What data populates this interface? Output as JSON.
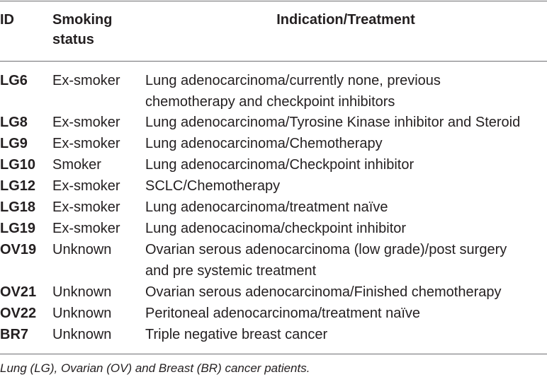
{
  "headers": {
    "id": "ID",
    "smoking_line1": "Smoking",
    "smoking_line2": "status",
    "indication": "Indication/Treatment"
  },
  "rows": [
    {
      "id": "LG6",
      "smoking": "Ex-smoker",
      "ind1": "Lung adenocarcinoma/currently none, previous",
      "ind2": "chemotherapy and checkpoint inhibitors"
    },
    {
      "id": "LG8",
      "smoking": "Ex-smoker",
      "ind1": "Lung adenocarcinoma/Tyrosine Kinase inhibitor and Steroid",
      "ind2": ""
    },
    {
      "id": "LG9",
      "smoking": "Ex-smoker",
      "ind1": "Lung adenocarcinoma/Chemotherapy",
      "ind2": ""
    },
    {
      "id": "LG10",
      "smoking": "Smoker",
      "ind1": "Lung adenocarcinoma/Checkpoint inhibitor",
      "ind2": ""
    },
    {
      "id": "LG12",
      "smoking": "Ex-smoker",
      "ind1": "SCLC/Chemotherapy",
      "ind2": ""
    },
    {
      "id": "LG18",
      "smoking": "Ex-smoker",
      "ind1": "Lung adenocarcinoma/treatment naïve",
      "ind2": ""
    },
    {
      "id": "LG19",
      "smoking": "Ex-smoker",
      "ind1": "Lung adenocacinoma/checkpoint inhibitor",
      "ind2": ""
    },
    {
      "id": "OV19",
      "smoking": "Unknown",
      "ind1": "Ovarian serous adenocarcinoma (low grade)/post surgery",
      "ind2": "and pre systemic treatment"
    },
    {
      "id": "OV21",
      "smoking": "Unknown",
      "ind1": "Ovarian serous adenocarcinoma/Finished chemotherapy",
      "ind2": ""
    },
    {
      "id": "OV22",
      "smoking": "Unknown",
      "ind1": "Peritoneal adenocarcinoma/treatment naïve",
      "ind2": ""
    },
    {
      "id": "BR7",
      "smoking": "Unknown",
      "ind1": "Triple negative breast cancer",
      "ind2": ""
    }
  ],
  "footnote": "Lung (LG), Ovarian (OV) and Breast (BR) cancer patients."
}
